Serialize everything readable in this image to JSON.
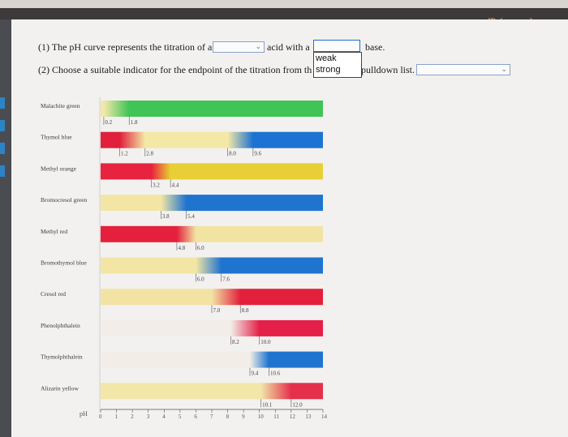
{
  "header": {
    "references_label": "[References]"
  },
  "questions": {
    "q1_prefix": "(1) The pH curve represents the titration of a",
    "q1_middle": "acid with a",
    "q1_suffix": "base.",
    "q2_prefix": "(2) Choose a suitable indicator for the endpoint of the titration from th",
    "q2_suffix": "pulldown list."
  },
  "dropdown_acid": {
    "value": ""
  },
  "dropdown_base": {
    "value": "",
    "options": [
      "weak",
      "strong"
    ]
  },
  "dropdown_indicator": {
    "value": ""
  },
  "chart_data": {
    "type": "bar",
    "xlabel": "pH",
    "x_ticks": [
      "0",
      "1",
      "2",
      "3",
      "4",
      "5",
      "6",
      "7",
      "8",
      "9",
      "10",
      "11",
      "12",
      "13",
      "14"
    ],
    "xlim": [
      0,
      14
    ],
    "indicators": [
      {
        "name": "Malachite green",
        "ranges": [
          {
            "low": 0.2,
            "high": 1.8,
            "low_label": "0.2",
            "high_label": "1.8"
          }
        ],
        "colors": [
          "#f3e8a9",
          "#3fc455"
        ]
      },
      {
        "name": "Thymol blue",
        "ranges": [
          {
            "low": 1.2,
            "high": 2.8,
            "low_label": "1.2",
            "high_label": "2.8"
          },
          {
            "low": 8.0,
            "high": 9.6,
            "low_label": "8.0",
            "high_label": "9.6"
          }
        ],
        "colors": [
          "#e0203c",
          "#f4e8a6",
          "#1d73d2"
        ]
      },
      {
        "name": "Methyl orange",
        "ranges": [
          {
            "low": 3.2,
            "high": 4.4,
            "low_label": "3.2",
            "high_label": "4.4"
          }
        ],
        "colors": [
          "#e8233f",
          "#e8cf35"
        ]
      },
      {
        "name": "Bromocresol green",
        "ranges": [
          {
            "low": 3.8,
            "high": 5.4,
            "low_label": "3.8",
            "high_label": "5.4"
          }
        ],
        "colors": [
          "#f3e6a4",
          "#1f74d0"
        ]
      },
      {
        "name": "Methyl red",
        "ranges": [
          {
            "low": 4.8,
            "high": 6.0,
            "low_label": "4.8",
            "high_label": "6.0"
          }
        ],
        "colors": [
          "#e5203c",
          "#f1e4a3"
        ]
      },
      {
        "name": "Bromothymol blue",
        "ranges": [
          {
            "low": 6.0,
            "high": 7.6,
            "low_label": "6.0",
            "high_label": "7.6"
          }
        ],
        "colors": [
          "#f3e6a4",
          "#1f74d0"
        ]
      },
      {
        "name": "Cresol red",
        "ranges": [
          {
            "low": 7.0,
            "high": 8.8,
            "low_label": "7.0",
            "high_label": "8.8"
          }
        ],
        "colors": [
          "#f2e3a4",
          "#e3203c"
        ]
      },
      {
        "name": "Phenolphthalein",
        "ranges": [
          {
            "low": 8.2,
            "high": 10.0,
            "low_label": "8.2",
            "high_label": "10.0"
          }
        ],
        "colors": [
          "#f2ede7",
          "#e42048"
        ]
      },
      {
        "name": "Thymolphthalein",
        "ranges": [
          {
            "low": 9.4,
            "high": 10.6,
            "low_label": "9.4",
            "high_label": "10.6"
          }
        ],
        "colors": [
          "#f2ede7",
          "#1f74d0"
        ]
      },
      {
        "name": "Alizarin yellow",
        "ranges": [
          {
            "low": 10.1,
            "high": 12.0,
            "low_label": "10.1",
            "high_label": "12.0"
          }
        ],
        "colors": [
          "#f2e6a8",
          "#e4304a"
        ]
      }
    ]
  }
}
